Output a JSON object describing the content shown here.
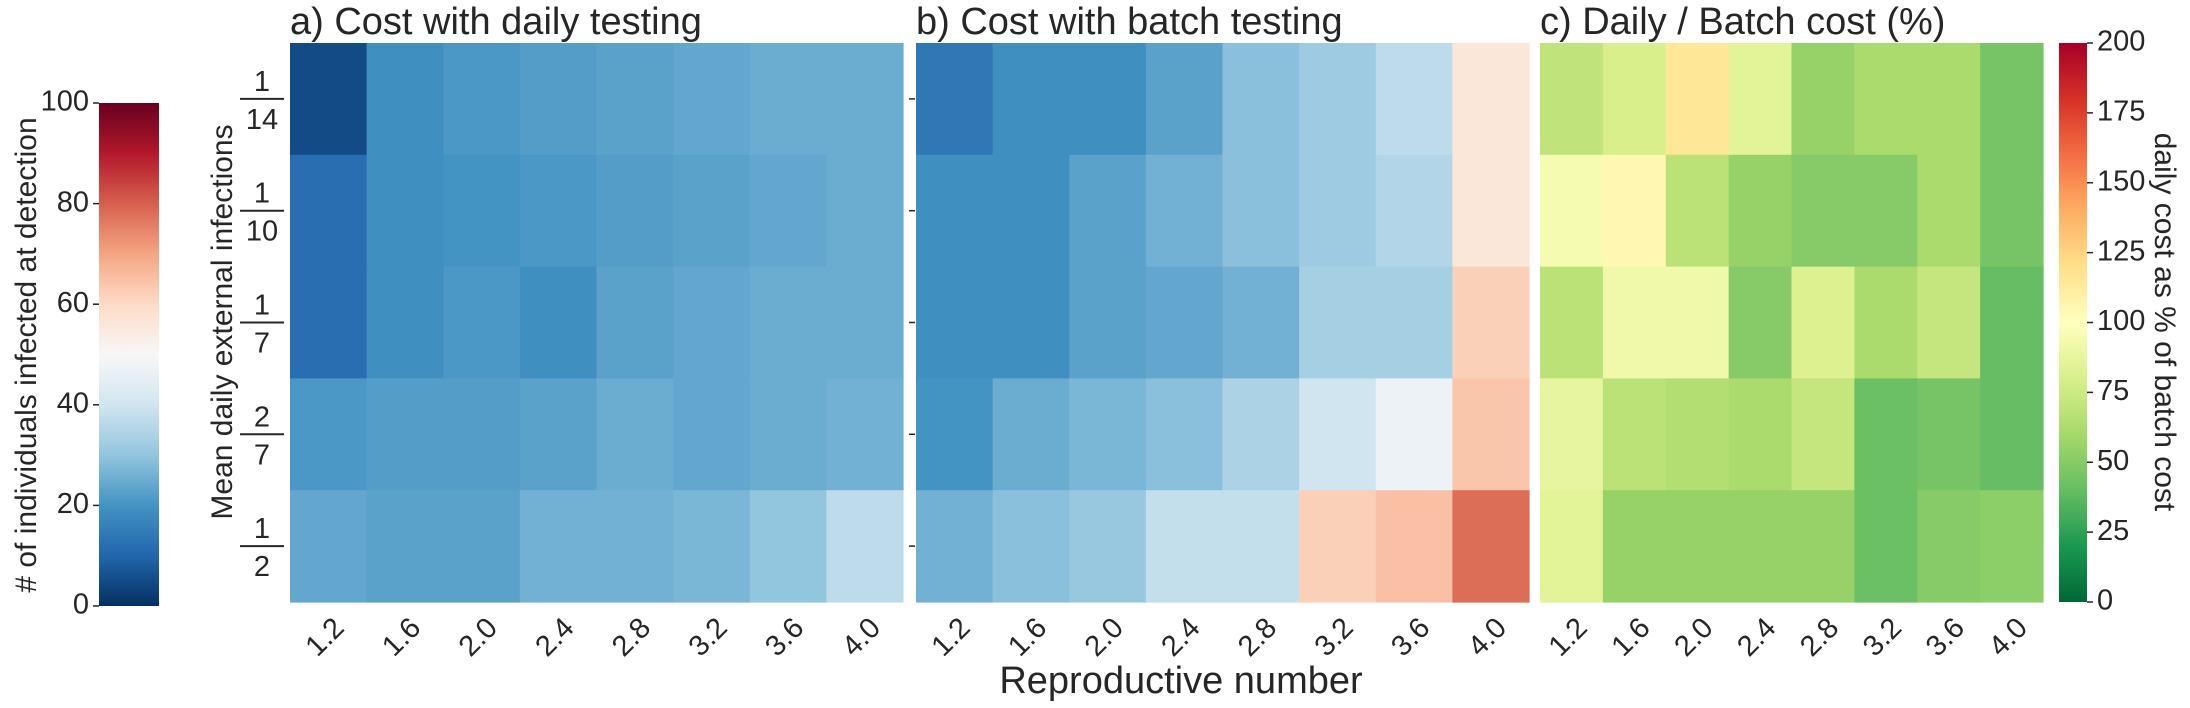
{
  "figure": {
    "xlabel": "Reproductive number",
    "ylabel": "Mean daily external infections"
  },
  "chart_data": [
    {
      "type": "heatmap",
      "title": "a) Cost with daily testing",
      "x": [
        "1.2",
        "1.6",
        "2.0",
        "2.4",
        "2.8",
        "3.2",
        "3.6",
        "4.0"
      ],
      "y": [
        {
          "num": "1",
          "den": "14"
        },
        {
          "num": "1",
          "den": "10"
        },
        {
          "num": "1",
          "den": "7"
        },
        {
          "num": "2",
          "den": "7"
        },
        {
          "num": "1",
          "den": "2"
        }
      ],
      "values": [
        [
          5,
          19,
          21,
          22,
          23,
          24,
          25,
          25
        ],
        [
          12,
          19,
          20,
          21,
          22,
          23,
          24,
          25
        ],
        [
          12,
          19,
          21,
          19,
          23,
          24,
          25,
          25
        ],
        [
          21,
          22,
          22,
          23,
          25,
          24,
          25,
          26
        ],
        [
          24,
          23,
          23,
          26,
          26,
          27,
          30,
          37
        ]
      ],
      "vmin": 0,
      "vmax": 100,
      "colormap": "RdBu_r"
    },
    {
      "type": "heatmap",
      "title": "b) Cost with batch testing",
      "x": [
        "1.2",
        "1.6",
        "2.0",
        "2.4",
        "2.8",
        "3.2",
        "3.6",
        "4.0"
      ],
      "y": [
        {
          "num": "1",
          "den": "14"
        },
        {
          "num": "1",
          "den": "10"
        },
        {
          "num": "1",
          "den": "7"
        },
        {
          "num": "2",
          "den": "7"
        },
        {
          "num": "1",
          "den": "2"
        }
      ],
      "values": [
        [
          14,
          19,
          19,
          23,
          29,
          32,
          37,
          56
        ],
        [
          19,
          19,
          23,
          26,
          29,
          32,
          35,
          56
        ],
        [
          19,
          19,
          23,
          24,
          26,
          33,
          33,
          62
        ],
        [
          20,
          25,
          27,
          29,
          34,
          40,
          47,
          64
        ],
        [
          26,
          29,
          31,
          38,
          38,
          62,
          65,
          78
        ]
      ],
      "vmin": 0,
      "vmax": 100,
      "colormap": "RdBu_r"
    },
    {
      "type": "heatmap",
      "title": "c) Daily / Batch cost (%)",
      "x": [
        "1.2",
        "1.6",
        "2.0",
        "2.4",
        "2.8",
        "3.2",
        "3.6",
        "4.0"
      ],
      "y": [
        {
          "num": "1",
          "den": "14"
        },
        {
          "num": "1",
          "den": "10"
        },
        {
          "num": "1",
          "den": "7"
        },
        {
          "num": "2",
          "den": "7"
        },
        {
          "num": "1",
          "den": "2"
        }
      ],
      "values": [
        [
          70,
          80,
          115,
          85,
          55,
          62,
          62,
          45
        ],
        [
          95,
          105,
          68,
          55,
          50,
          50,
          62,
          45
        ],
        [
          68,
          92,
          92,
          50,
          82,
          62,
          72,
          40
        ],
        [
          88,
          68,
          65,
          62,
          72,
          42,
          45,
          40
        ],
        [
          85,
          55,
          55,
          55,
          55,
          42,
          50,
          52
        ]
      ],
      "vmin": 0,
      "vmax": 200,
      "colormap": "RdYlGn_r"
    }
  ],
  "colorbars": [
    {
      "label": "# of individuals infected at detection",
      "ticks": [
        "0",
        "20",
        "40",
        "60",
        "80",
        "100"
      ],
      "vmin": 0,
      "vmax": 100,
      "colormap": "RdBu_r",
      "position": "left"
    },
    {
      "label": "daily cost as % of batch cost",
      "ticks": [
        "0",
        "25",
        "50",
        "75",
        "100",
        "125",
        "150",
        "175",
        "200"
      ],
      "vmin": 0,
      "vmax": 200,
      "colormap": "RdYlGn_r",
      "position": "right"
    }
  ]
}
